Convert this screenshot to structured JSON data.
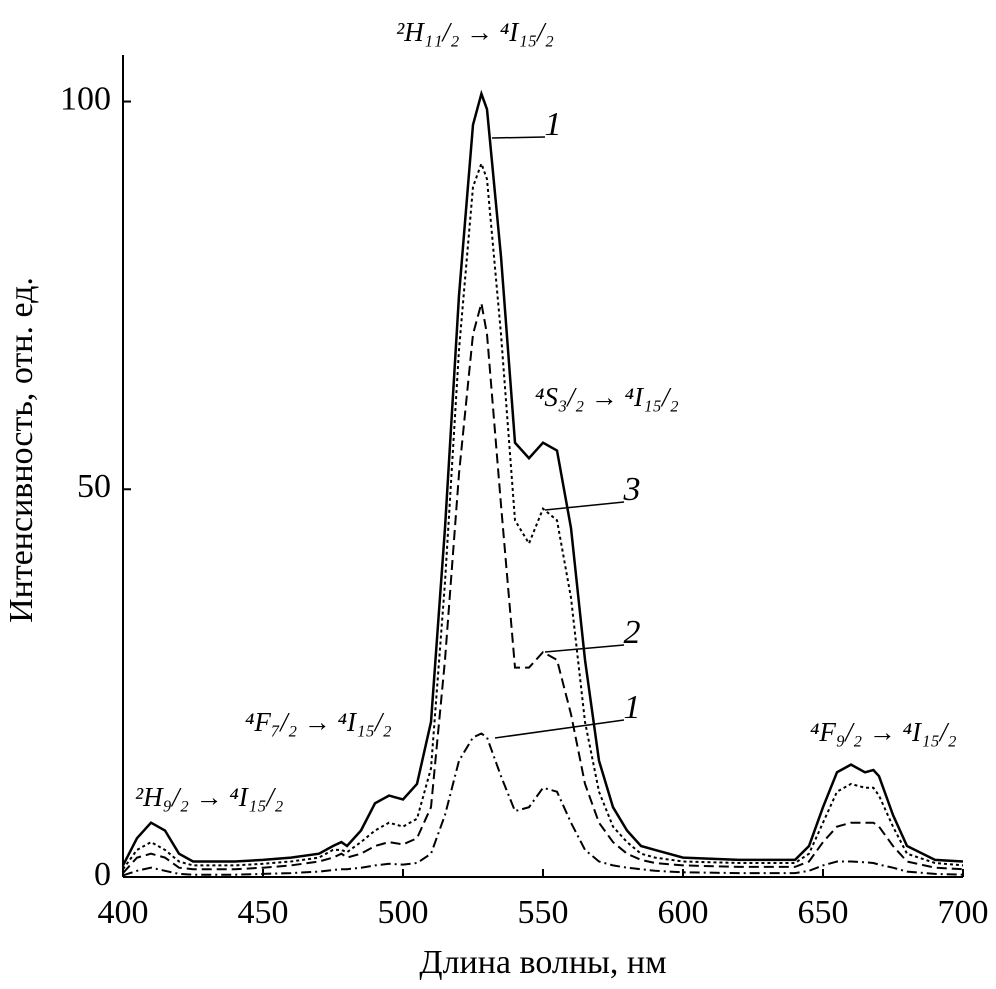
{
  "chart_data": {
    "type": "line",
    "x_label": "Длина волны, нм",
    "y_label": "Интенсивность, отн. ед.",
    "annotations": [
      "²H₁₁/₂ → ⁴I₁₅/₂",
      "⁴S₃/₂ → ⁴I₁₅/₂",
      "⁴F₇/₂ → ⁴I₁₅/₂",
      "²H₉/₂ → ⁴I₁₅/₂",
      "⁴F₉/₂ → ⁴I₁₅/₂"
    ],
    "xlim": [
      400,
      700
    ],
    "xticks": [
      400,
      450,
      500,
      550,
      600,
      650,
      700
    ],
    "ylim": [
      0,
      106
    ],
    "yticks": [
      0,
      50,
      100
    ],
    "grid": false,
    "x": [
      400,
      405,
      410,
      415,
      420,
      425,
      430,
      440,
      450,
      460,
      470,
      475,
      478,
      480,
      485,
      490,
      495,
      500,
      505,
      510,
      515,
      520,
      525,
      528,
      530,
      535,
      540,
      545,
      550,
      555,
      560,
      565,
      570,
      575,
      580,
      585,
      590,
      600,
      620,
      640,
      645,
      650,
      655,
      660,
      665,
      668,
      670,
      675,
      680,
      690,
      700
    ],
    "series": [
      {
        "name": "1",
        "color": "#000000",
        "dash": "solid",
        "values": [
          1.5,
          5,
          7,
          6,
          3,
          2,
          2,
          2,
          2.2,
          2.5,
          3,
          4,
          4.5,
          4,
          6,
          9.5,
          10.5,
          10,
          12,
          20,
          45,
          75,
          97,
          101,
          99,
          80,
          56,
          54,
          56,
          55,
          45,
          28,
          15,
          9,
          6,
          4,
          3.5,
          2.5,
          2.2,
          2.2,
          4,
          9,
          13.5,
          14.5,
          13.5,
          13.8,
          13,
          8,
          4,
          2.2,
          2
        ]
      },
      {
        "name": "3",
        "color": "#000000",
        "dash": "dotted",
        "values": [
          1,
          3.5,
          4.5,
          3.5,
          2,
          1.5,
          1.5,
          1.5,
          1.7,
          2,
          2.5,
          3.5,
          3.5,
          3.2,
          4.5,
          6,
          7,
          6.5,
          7.5,
          14,
          38,
          68,
          89,
          92,
          90,
          70,
          46,
          43,
          47.5,
          46,
          36,
          20,
          11,
          6.5,
          4.5,
          3,
          2.5,
          2,
          1.8,
          1.8,
          3,
          7,
          11,
          12,
          11.5,
          11.5,
          10.5,
          6.5,
          3,
          1.8,
          1.5
        ]
      },
      {
        "name": "2",
        "color": "#000000",
        "dash": "dashed",
        "values": [
          0.5,
          2.5,
          3,
          2.5,
          1.2,
          1,
          1,
          1,
          1.2,
          1.5,
          2,
          2.5,
          3,
          2.5,
          3,
          4,
          4.5,
          4.2,
          5,
          9,
          28,
          52,
          70,
          74,
          70,
          48,
          27,
          27,
          29,
          28,
          21,
          12,
          7,
          4.5,
          3,
          2.2,
          1.8,
          1.5,
          1.3,
          1.3,
          2,
          4.5,
          6.5,
          7,
          7,
          7,
          6.5,
          4,
          2,
          1.2,
          1
        ]
      },
      {
        "name": "1",
        "color": "#000000",
        "dash": "dashdot",
        "values": [
          0.2,
          0.8,
          1.2,
          0.8,
          0.4,
          0.3,
          0.3,
          0.3,
          0.4,
          0.5,
          0.7,
          0.9,
          1,
          1,
          1.2,
          1.5,
          1.7,
          1.6,
          1.8,
          3,
          8,
          15,
          18,
          18.5,
          18,
          13,
          8.5,
          9,
          11.5,
          11,
          7,
          3.5,
          2,
          1.5,
          1.2,
          1,
          0.8,
          0.6,
          0.5,
          0.5,
          0.8,
          1.5,
          2,
          2,
          1.9,
          1.8,
          1.6,
          1.2,
          0.7,
          0.4,
          0.3
        ]
      }
    ]
  }
}
